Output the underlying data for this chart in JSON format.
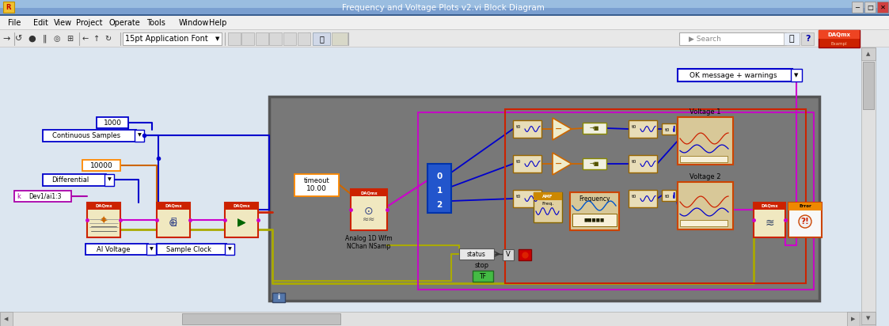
{
  "title": "Frequency and Voltage Plots v2.vi Block Diagram",
  "titlebar_text": "Frequency and Voltage Plots v2.vi Block Diagram",
  "menu_items": [
    "File",
    "Edit",
    "View",
    "Project",
    "Operate",
    "Tools",
    "Window",
    "Help"
  ],
  "toolbar_font": "15pt Application Font",
  "ok_message_label": "OK message + warnings",
  "colors": {
    "titlebar": "#4a6fa5",
    "titlebar_gradient_top": "#6a8ec5",
    "window_bg": "#dce6f0",
    "diagram_bg": "#dce6f0",
    "inner_box_bg": "#787878",
    "inner_box_border": "#555555",
    "blue_border": "#0000cc",
    "orange_border": "#ff8800",
    "purple_border": "#aa00aa",
    "red_border": "#cc0000",
    "menu_bg": "#f0f0f0",
    "toolbar_bg": "#e8e8e8",
    "scrollbar_bg": "#e0e0e0",
    "scrollbar_thumb": "#b8b8b8",
    "wire_blue": "#0000cc",
    "wire_orange": "#cc6600",
    "wire_pink": "#cc00cc",
    "wire_yellow": "#aaaa00",
    "wire_dkred": "#cc0000",
    "daqmx_red_top": "#cc2222",
    "box_cream": "#f0e8c8",
    "box_tan": "#d8c898",
    "wfm_border": "#886600",
    "green_stop": "#44bb44",
    "status_gray": "#e0e0e0"
  }
}
